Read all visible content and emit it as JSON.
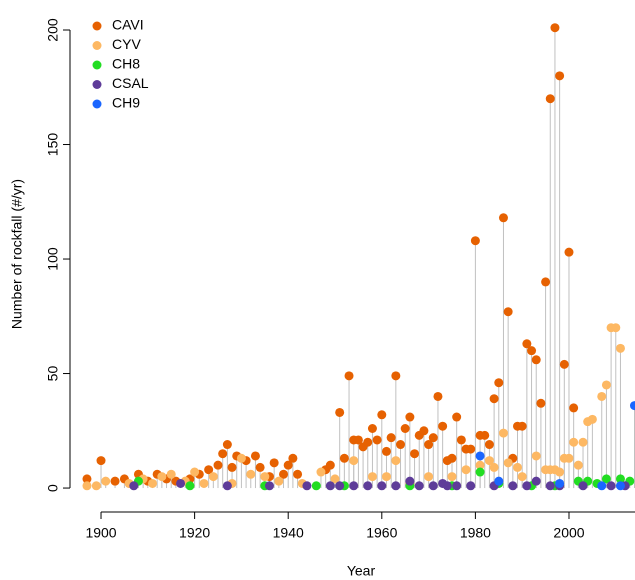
{
  "chart_data": {
    "type": "lollipop",
    "xlabel": "Year",
    "ylabel": "Number of rockfall (#/yr)",
    "xlim": [
      1896,
      2014
    ],
    "ylim": [
      -5,
      209
    ],
    "xticks": [
      1900,
      1920,
      1940,
      1960,
      1980,
      2000
    ],
    "yticks": [
      0,
      50,
      100,
      150,
      200
    ],
    "stem_color": "#c0c0c0",
    "legend": "top-left",
    "series": [
      {
        "name": "CAVI",
        "color": "#e66101",
        "x": [
          1897,
          1900,
          1903,
          1905,
          1908,
          1910,
          1912,
          1914,
          1916,
          1919,
          1921,
          1923,
          1925,
          1926,
          1927,
          1928,
          1929,
          1931,
          1933,
          1934,
          1936,
          1937,
          1939,
          1940,
          1941,
          1942,
          1948,
          1949,
          1951,
          1952,
          1953,
          1954,
          1955,
          1956,
          1957,
          1958,
          1959,
          1960,
          1961,
          1962,
          1963,
          1964,
          1965,
          1966,
          1967,
          1968,
          1969,
          1970,
          1971,
          1972,
          1973,
          1974,
          1975,
          1976,
          1977,
          1978,
          1979,
          1980,
          1981,
          1982,
          1983,
          1984,
          1985,
          1986,
          1987,
          1988,
          1989,
          1990,
          1991,
          1992,
          1993,
          1994,
          1995,
          1996,
          1997,
          1998,
          1999,
          2000,
          2001
        ],
        "values": [
          4,
          12,
          3,
          4,
          6,
          3,
          6,
          4,
          3,
          4,
          6,
          8,
          10,
          15,
          19,
          9,
          14,
          12,
          14,
          9,
          5,
          11,
          6,
          10,
          13,
          6,
          8,
          10,
          33,
          13,
          49,
          21,
          21,
          18,
          20,
          26,
          21,
          32,
          16,
          22,
          49,
          19,
          26,
          31,
          15,
          23,
          25,
          19,
          22,
          40,
          27,
          12,
          13,
          31,
          21,
          17,
          17,
          108,
          23,
          23,
          19,
          39,
          46,
          118,
          77,
          13,
          27,
          27,
          63,
          60,
          56,
          37,
          90,
          170,
          201,
          180,
          54,
          103,
          35
        ]
      },
      {
        "name": "CYV",
        "color": "#fdb863",
        "x": [
          1897,
          1899,
          1901,
          1906,
          1909,
          1911,
          1913,
          1915,
          1918,
          1920,
          1922,
          1924,
          1928,
          1930,
          1932,
          1935,
          1938,
          1943,
          1947,
          1950,
          1954,
          1958,
          1961,
          1963,
          1966,
          1970,
          1975,
          1978,
          1981,
          1983,
          1984,
          1986,
          1987,
          1989,
          1990,
          1993,
          1995,
          1996,
          1997,
          1998,
          1999,
          2000,
          2001,
          2002,
          2003,
          2004,
          2005,
          2007,
          2008,
          2009,
          2010,
          2011
        ],
        "values": [
          1,
          1,
          3,
          2,
          4,
          2,
          5,
          6,
          3,
          7,
          2,
          5,
          2,
          13,
          6,
          5,
          3,
          2,
          7,
          4,
          12,
          5,
          5,
          12,
          2,
          5,
          5,
          8,
          10,
          12,
          9,
          24,
          11,
          9,
          5,
          14,
          8,
          8,
          8,
          7,
          13,
          13,
          20,
          10,
          20,
          29,
          30,
          40,
          45,
          70,
          70,
          61
        ]
      },
      {
        "name": "CH8",
        "color": "#22dd22",
        "x": [
          1908,
          1919,
          1935,
          1946,
          1952,
          1966,
          1975,
          1981,
          1985,
          1992,
          1997,
          2002,
          2004,
          2006,
          2008,
          2011,
          2013
        ],
        "values": [
          3,
          1,
          1,
          1,
          1,
          1,
          1,
          7,
          2,
          1,
          1,
          3,
          3,
          2,
          4,
          4,
          3
        ]
      },
      {
        "name": "CSAL",
        "color": "#5e3c99",
        "x": [
          1907,
          1917,
          1927,
          1936,
          1944,
          1949,
          1951,
          1954,
          1957,
          1960,
          1963,
          1966,
          1968,
          1971,
          1973,
          1974,
          1976,
          1979,
          1984,
          1988,
          1991,
          1993,
          1996,
          1998,
          2003,
          2009,
          2012
        ],
        "values": [
          1,
          2,
          1,
          1,
          1,
          1,
          1,
          1,
          1,
          1,
          1,
          3,
          1,
          1,
          2,
          1,
          1,
          1,
          1,
          1,
          1,
          3,
          1,
          1,
          1,
          1,
          1
        ]
      },
      {
        "name": "CH9",
        "color": "#1a66ff",
        "x": [
          1981,
          1985,
          1998,
          2007,
          2011,
          2014
        ],
        "values": [
          14,
          3,
          2,
          1,
          1,
          36
        ]
      }
    ]
  }
}
